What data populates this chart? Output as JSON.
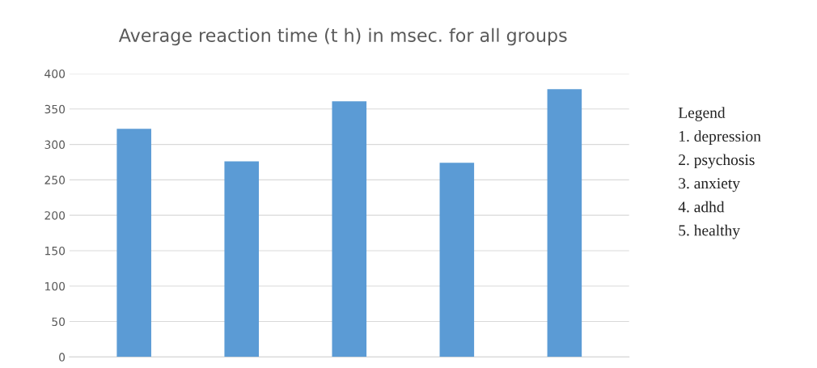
{
  "chart_data": {
    "type": "bar",
    "title": "Average reaction time (t h) in msec. for all groups",
    "categories": [
      null,
      null,
      null,
      null,
      null
    ],
    "values": [
      322,
      276,
      361,
      274,
      378
    ],
    "color": "#5b9bd5",
    "ylim": [
      0,
      400
    ],
    "yticks": [
      0,
      50,
      100,
      150,
      200,
      250,
      300,
      350,
      400
    ],
    "grid": "y",
    "annotations": [
      "Legend",
      "1. depression",
      "2. psychosis",
      "3. anxiety",
      "4. adhd",
      "5. healthy"
    ]
  }
}
